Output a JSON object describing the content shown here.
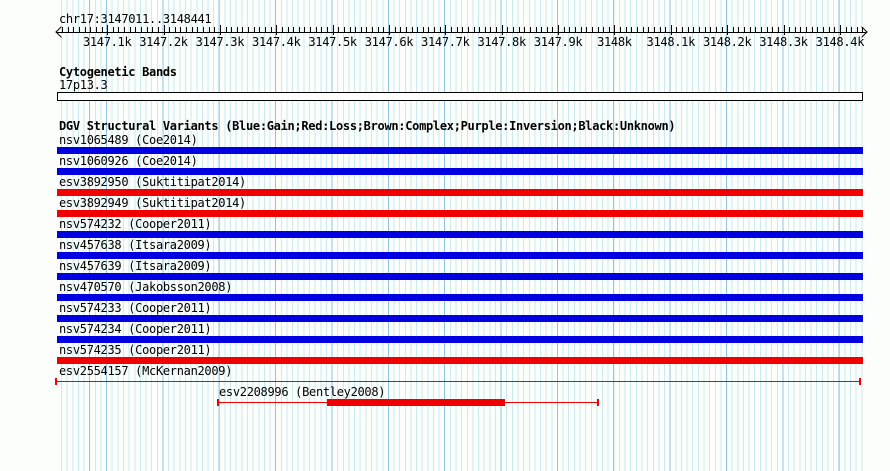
{
  "region": {
    "title": "chr17:3147011..3148441",
    "chromosome": "chr17",
    "start": 3147011,
    "end": 3148441
  },
  "ruler": {
    "minor_tick_bp": 10,
    "major_tick_bp": 100,
    "tick_labels": [
      {
        "text": "3147.1k",
        "bp": 3147100
      },
      {
        "text": "3147.2k",
        "bp": 3147200
      },
      {
        "text": "3147.3k",
        "bp": 3147300
      },
      {
        "text": "3147.4k",
        "bp": 3147400
      },
      {
        "text": "3147.5k",
        "bp": 3147500
      },
      {
        "text": "3147.6k",
        "bp": 3147600
      },
      {
        "text": "3147.7k",
        "bp": 3147700
      },
      {
        "text": "3147.8k",
        "bp": 3147800
      },
      {
        "text": "3147.9k",
        "bp": 3147900
      },
      {
        "text": "3148k",
        "bp": 3148000
      },
      {
        "text": "3148.1k",
        "bp": 3148100
      },
      {
        "text": "3148.2k",
        "bp": 3148200
      },
      {
        "text": "3148.3k",
        "bp": 3148300
      },
      {
        "text": "3148.4k",
        "bp": 3148400
      }
    ]
  },
  "cytogenetic": {
    "heading": "Cytogenetic Bands",
    "band_label": "17p13.3"
  },
  "dgv": {
    "heading": "DGV Structural Variants (Blue:Gain;Red:Loss;Brown:Complex;Purple:Inversion;Black:Unknown)",
    "variants": [
      {
        "label": "nsv1065489 (Coe2014)",
        "class": "gain",
        "glyph": "box",
        "start": 3147011,
        "end": 3148441
      },
      {
        "label": "nsv1060926 (Coe2014)",
        "class": "gain",
        "glyph": "box",
        "start": 3147011,
        "end": 3148441
      },
      {
        "label": "esv3892950 (Suktitipat2014)",
        "class": "loss",
        "glyph": "box",
        "start": 3147011,
        "end": 3148441
      },
      {
        "label": "esv3892949 (Suktitipat2014)",
        "class": "loss",
        "glyph": "box",
        "start": 3147011,
        "end": 3148441
      },
      {
        "label": "nsv574232 (Cooper2011)",
        "class": "gain",
        "glyph": "box",
        "start": 3147011,
        "end": 3148441
      },
      {
        "label": "nsv457638 (Itsara2009)",
        "class": "gain",
        "glyph": "box",
        "start": 3147011,
        "end": 3148441
      },
      {
        "label": "nsv457639 (Itsara2009)",
        "class": "gain",
        "glyph": "box",
        "start": 3147011,
        "end": 3148441
      },
      {
        "label": "nsv470570 (Jakobsson2008)",
        "class": "gain",
        "glyph": "box",
        "start": 3147011,
        "end": 3148441
      },
      {
        "label": "nsv574233 (Cooper2011)",
        "class": "gain",
        "glyph": "box",
        "start": 3147011,
        "end": 3148441
      },
      {
        "label": "nsv574234 (Cooper2011)",
        "class": "gain",
        "glyph": "box",
        "start": 3147011,
        "end": 3148441
      },
      {
        "label": "nsv574235 (Cooper2011)",
        "class": "loss",
        "glyph": "box",
        "start": 3147011,
        "end": 3148441
      },
      {
        "label": "esv2554157 (McKernan2009)",
        "class": "loss",
        "glyph": "range",
        "start": 3147010,
        "end": 3148436
      },
      {
        "label": "esv2208996 (Bentley2008)",
        "class": "loss",
        "glyph": "range",
        "start": 3147296,
        "end": 3147970,
        "thick_start": 3147490,
        "thick_end": 3147806
      }
    ]
  },
  "colors": {
    "gain": "#0000e0",
    "loss": "#f00000",
    "grid_minor": "#c9ebf1",
    "grid_major": "#8fc6e3",
    "text": "#000000"
  }
}
